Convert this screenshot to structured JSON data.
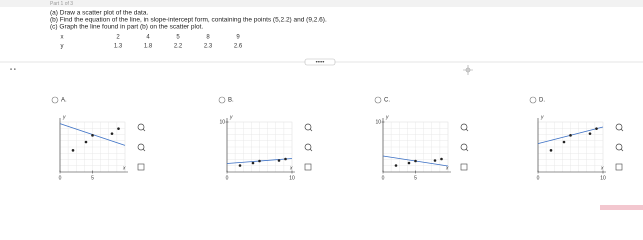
{
  "header": {
    "part": "Part 1 of 3",
    "lines": [
      "(a) Draw a scatter plot of the data.",
      "(b) Find the equation of the line, in slope-intercept form, containing the points (5,2.2) and (9,2.6).",
      "(c) Graph the line found in part (b) on the scatter plot."
    ]
  },
  "table": {
    "x_label": "x",
    "y_label": "y",
    "x": [
      2,
      4,
      5,
      8,
      9
    ],
    "y": [
      1.3,
      1.8,
      2.2,
      2.3,
      2.6
    ]
  },
  "options": [
    {
      "label": "A.",
      "x_axis": "x",
      "y_axis": "y",
      "xlim": [
        0,
        10
      ],
      "ylim": [
        0,
        3
      ],
      "xticks": [
        0,
        5
      ],
      "yticks": [],
      "points": [
        [
          2,
          1.3
        ],
        [
          4,
          1.8
        ],
        [
          5,
          2.2
        ],
        [
          8,
          2.3
        ],
        [
          9,
          2.6
        ]
      ],
      "line": [
        [
          0,
          2.9
        ],
        [
          10,
          1.6
        ]
      ]
    },
    {
      "label": "B.",
      "x_axis": "x",
      "y_axis": "y",
      "xlim": [
        0,
        10
      ],
      "ylim": [
        0,
        10
      ],
      "xticks": [
        0,
        10
      ],
      "yticks": [
        10
      ],
      "points": [
        [
          2,
          1.3
        ],
        [
          4,
          1.8
        ],
        [
          5,
          2.2
        ],
        [
          8,
          2.3
        ],
        [
          9,
          2.6
        ]
      ],
      "line": [
        [
          0,
          1.7
        ],
        [
          10,
          2.7
        ]
      ]
    },
    {
      "label": "C.",
      "x_axis": "x",
      "y_axis": "y",
      "xlim": [
        0,
        10
      ],
      "ylim": [
        0,
        10
      ],
      "xticks": [
        0,
        5
      ],
      "yticks": [
        10
      ],
      "points": [
        [
          2,
          1.3
        ],
        [
          4,
          1.8
        ],
        [
          5,
          2.2
        ],
        [
          8,
          2.3
        ],
        [
          9,
          2.6
        ]
      ],
      "line": [
        [
          0,
          3.2
        ],
        [
          10,
          1.2
        ]
      ]
    },
    {
      "label": "D.",
      "x_axis": "x",
      "y_axis": "y",
      "xlim": [
        0,
        10
      ],
      "ylim": [
        0,
        3
      ],
      "xticks": [
        0,
        10
      ],
      "yticks": [],
      "points": [
        [
          2,
          1.3
        ],
        [
          4,
          1.8
        ],
        [
          5,
          2.2
        ],
        [
          8,
          2.3
        ],
        [
          9,
          2.6
        ]
      ],
      "line": [
        [
          0,
          1.7
        ],
        [
          10,
          2.7
        ]
      ]
    }
  ]
}
